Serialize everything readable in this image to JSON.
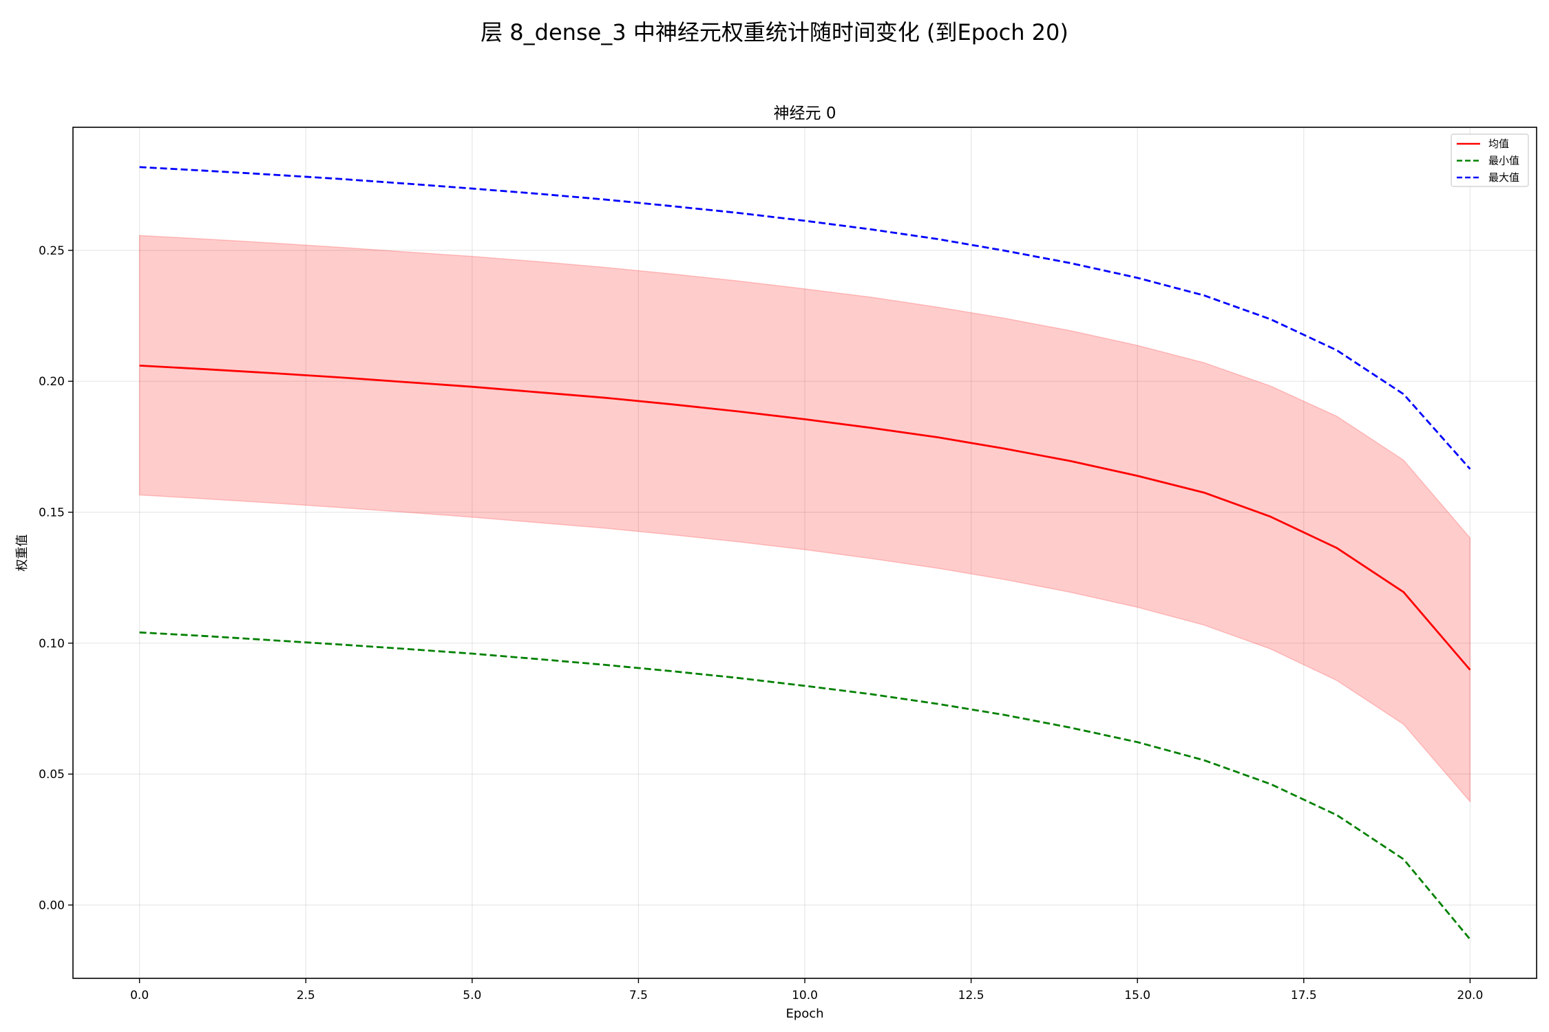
{
  "figure": {
    "suptitle": "层 8_dense_3 中神经元权重统计随时间变化 (到Epoch 20)"
  },
  "chart_data": {
    "type": "line",
    "title": "神经元 0",
    "xlabel": "Epoch",
    "ylabel": "权重值",
    "xlim": [
      -1,
      21
    ],
    "ylim": [
      -0.028,
      0.297
    ],
    "xticks": [
      0,
      2.5,
      5,
      7.5,
      10,
      12.5,
      15,
      17.5,
      20
    ],
    "xtick_labels": [
      "0.0",
      "2.5",
      "5.0",
      "7.5",
      "10.0",
      "12.5",
      "15.0",
      "17.5",
      "20.0"
    ],
    "yticks": [
      0,
      0.05,
      0.1,
      0.15,
      0.2,
      0.25
    ],
    "ytick_labels": [
      "0.00",
      "0.05",
      "0.10",
      "0.15",
      "0.20",
      "0.25"
    ],
    "grid": true,
    "legend_position": "top-right",
    "x": [
      0,
      1,
      2,
      3,
      4,
      5,
      6,
      7,
      8,
      9,
      10,
      11,
      12,
      13,
      14,
      15,
      16,
      17,
      18,
      19,
      20
    ],
    "series": [
      {
        "name": "均值",
        "style": "solid",
        "color": "#ff0000",
        "values": [
          0.206,
          0.2046,
          0.2031,
          0.2015,
          0.1997,
          0.1979,
          0.1958,
          0.1937,
          0.1912,
          0.1885,
          0.1855,
          0.1822,
          0.1786,
          0.1743,
          0.1695,
          0.1639,
          0.1575,
          0.1483,
          0.1363,
          0.1195,
          0.0898
        ]
      },
      {
        "name": "最小值",
        "style": "dashed",
        "color": "#008000",
        "values": [
          0.1041,
          0.1027,
          0.1011,
          0.0995,
          0.0978,
          0.096,
          0.0939,
          0.0917,
          0.0893,
          0.0867,
          0.0837,
          0.0805,
          0.0768,
          0.0726,
          0.0677,
          0.0622,
          0.0553,
          0.0462,
          0.0343,
          0.0175,
          -0.0131
        ]
      },
      {
        "name": "最大值",
        "style": "dashed",
        "color": "#0000ff",
        "values": [
          0.2818,
          0.2804,
          0.2789,
          0.2773,
          0.2755,
          0.2736,
          0.2716,
          0.2694,
          0.2669,
          0.2643,
          0.2613,
          0.258,
          0.2543,
          0.2499,
          0.2451,
          0.2395,
          0.2328,
          0.2237,
          0.2118,
          0.1951,
          0.1665
        ]
      }
    ],
    "band": {
      "color": "#ff0000",
      "opacity": 0.2,
      "lower": [
        0.1566,
        0.1551,
        0.1535,
        0.1518,
        0.15,
        0.1481,
        0.146,
        0.1439,
        0.1414,
        0.1387,
        0.1357,
        0.1323,
        0.1286,
        0.1243,
        0.1194,
        0.1137,
        0.1069,
        0.0978,
        0.0857,
        0.069,
        0.0395
      ],
      "upper": [
        0.2557,
        0.2543,
        0.2528,
        0.2512,
        0.2494,
        0.2477,
        0.2457,
        0.2435,
        0.241,
        0.2383,
        0.2353,
        0.2321,
        0.2283,
        0.2241,
        0.2193,
        0.2137,
        0.2071,
        0.1982,
        0.1866,
        0.1699,
        0.1402
      ]
    }
  }
}
